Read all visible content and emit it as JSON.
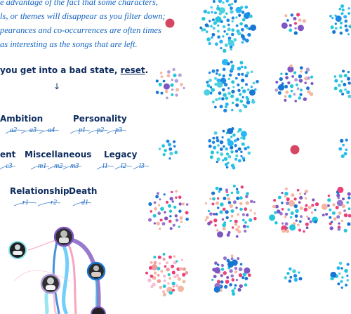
{
  "intro": {
    "lines": [
      "e advantage of the fact that some characters,",
      "ls, or themes will disappear as you filter down;",
      "pearances and co-occurrences are often times",
      "as interesting as the songs that are left."
    ]
  },
  "reset": {
    "prefix": "you get into a bad state, ",
    "link": "reset",
    "suffix": ".",
    "arrow": "↓"
  },
  "categories": [
    {
      "label": "Ambition",
      "subs": [
        "a2",
        "a3",
        "a4"
      ]
    },
    {
      "label": "Personality",
      "subs": [
        "p1",
        "p2",
        "p3"
      ]
    },
    {
      "label": "ent",
      "subs": [
        "c3"
      ]
    },
    {
      "label": "Miscellaneous",
      "subs": [
        "m1",
        "m2",
        "m3"
      ]
    },
    {
      "label": "Legacy",
      "subs": [
        "l1",
        "l2",
        "l3"
      ]
    },
    {
      "label": "Relationship",
      "subs": [
        "r1",
        "r2"
      ]
    },
    {
      "label": "Death",
      "subs": [
        "d1"
      ]
    }
  ],
  "colors": {
    "text": "#0d2b5e",
    "accent": "#1565c0",
    "teal": "#26c6da",
    "blue": "#1976d2",
    "purple": "#7e57c2",
    "pink": "#ec407a",
    "peach": "#f4b6a3",
    "red": "#d64562"
  }
}
